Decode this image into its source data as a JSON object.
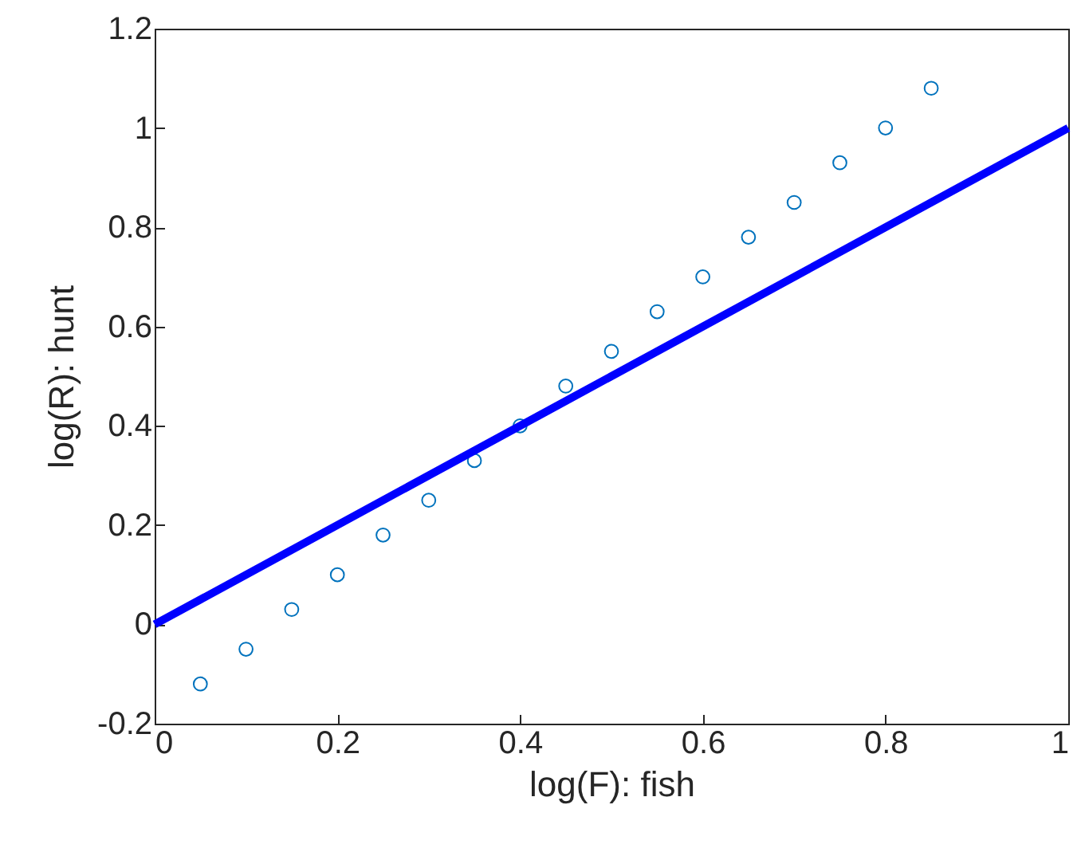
{
  "chart_data": {
    "type": "scatter",
    "xlabel": "log(F): fish",
    "ylabel": "log(R): hunt",
    "xlim": [
      0,
      1
    ],
    "ylim": [
      -0.2,
      1.2
    ],
    "xticks": [
      0,
      0.2,
      0.4,
      0.6,
      0.8,
      1
    ],
    "yticks": [
      -0.2,
      0,
      0.2,
      0.4,
      0.6,
      0.8,
      1,
      1.2
    ],
    "grid": false,
    "series": [
      {
        "color": "#0072bd",
        "marker": "circle",
        "x": [
          0.05,
          0.1,
          0.15,
          0.2,
          0.25,
          0.3,
          0.35,
          0.4,
          0.45,
          0.5,
          0.55,
          0.6,
          0.65,
          0.7,
          0.75,
          0.8,
          0.85
        ],
        "values": [
          -0.12,
          -0.05,
          0.03,
          0.1,
          0.18,
          0.25,
          0.33,
          0.4,
          0.48,
          0.55,
          0.63,
          0.7,
          0.78,
          0.85,
          0.93,
          1.0,
          1.08
        ]
      },
      {
        "type": "line",
        "color": "#0000ff",
        "line_style": "solid",
        "x": [
          0,
          1
        ],
        "values": [
          0,
          1
        ]
      }
    ]
  }
}
